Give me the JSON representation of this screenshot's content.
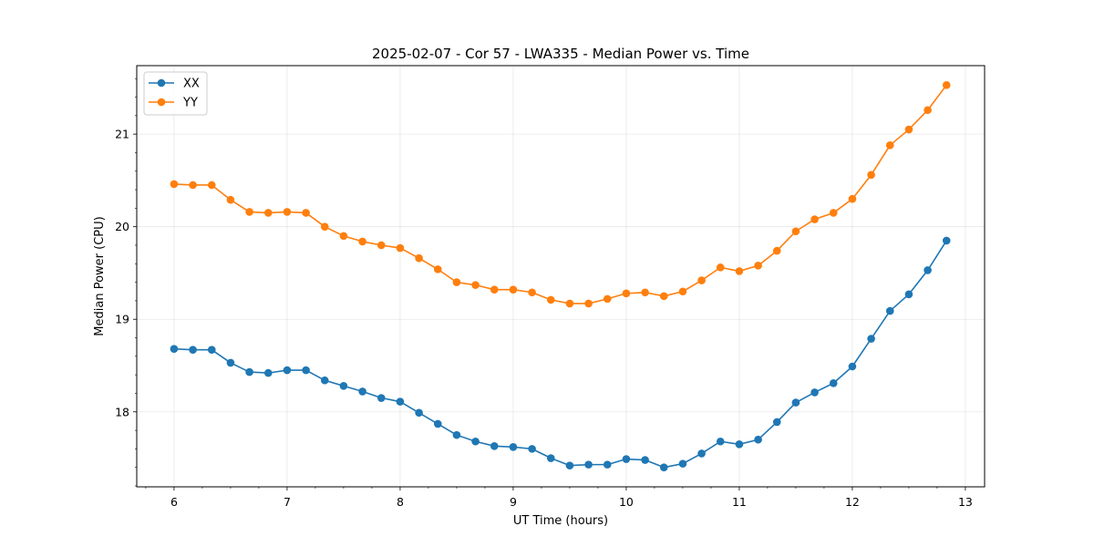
{
  "chart_data": {
    "type": "line",
    "title": "2025-02-07 - Cor 57 - LWA335 - Median Power vs. Time",
    "xlabel": "UT Time (hours)",
    "ylabel": "Median Power (CPU)",
    "xlim": [
      5.67,
      13.17
    ],
    "ylim": [
      17.19,
      21.74
    ],
    "xticks": [
      6,
      7,
      8,
      9,
      10,
      11,
      12,
      13
    ],
    "yticks": [
      18,
      19,
      20,
      21
    ],
    "grid": true,
    "legend_position": "upper-left",
    "x": [
      6.0,
      6.1667,
      6.3333,
      6.5,
      6.6667,
      6.8333,
      7.0,
      7.1667,
      7.3333,
      7.5,
      7.6667,
      7.8333,
      8.0,
      8.1667,
      8.3333,
      8.5,
      8.6667,
      8.8333,
      9.0,
      9.1667,
      9.3333,
      9.5,
      9.6667,
      9.8333,
      10.0,
      10.1667,
      10.3333,
      10.5,
      10.6667,
      10.8333,
      11.0,
      11.1667,
      11.3333,
      11.5,
      11.6667,
      11.8333,
      12.0,
      12.1667,
      12.3333,
      12.5,
      12.6667,
      12.8333
    ],
    "series": [
      {
        "name": "XX",
        "color": "#1f77b4",
        "values": [
          18.68,
          18.67,
          18.67,
          18.53,
          18.43,
          18.42,
          18.45,
          18.45,
          18.34,
          18.28,
          18.22,
          18.15,
          18.11,
          17.99,
          17.87,
          17.75,
          17.68,
          17.63,
          17.62,
          17.6,
          17.5,
          17.42,
          17.43,
          17.43,
          17.49,
          17.48,
          17.4,
          17.44,
          17.55,
          17.68,
          17.65,
          17.7,
          17.89,
          18.1,
          18.21,
          18.31,
          18.49,
          18.79,
          19.09,
          19.27,
          19.53,
          19.85
        ]
      },
      {
        "name": "YY",
        "color": "#ff7f0e",
        "values": [
          20.46,
          20.45,
          20.45,
          20.29,
          20.16,
          20.15,
          20.16,
          20.15,
          20.0,
          19.9,
          19.84,
          19.8,
          19.77,
          19.66,
          19.54,
          19.4,
          19.37,
          19.32,
          19.32,
          19.29,
          19.21,
          19.17,
          19.17,
          19.22,
          19.28,
          19.29,
          19.25,
          19.3,
          19.42,
          19.56,
          19.52,
          19.58,
          19.74,
          19.95,
          20.08,
          20.15,
          20.3,
          20.56,
          20.88,
          21.05,
          21.26,
          21.53
        ]
      }
    ]
  }
}
